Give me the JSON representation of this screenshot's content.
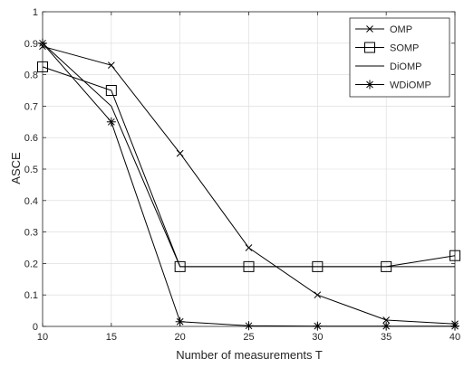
{
  "chart_data": {
    "type": "line",
    "title": "",
    "xlabel": "Number of measurements T",
    "ylabel": "ASCE",
    "x": [
      10,
      15,
      20,
      25,
      30,
      35,
      40
    ],
    "xlim": [
      10,
      40
    ],
    "ylim": [
      0,
      1
    ],
    "xticks": [
      "10",
      "15",
      "20",
      "25",
      "30",
      "35",
      "40"
    ],
    "yticks": [
      "0",
      "0.1",
      "0.2",
      "0.3",
      "0.4",
      "0.5",
      "0.6",
      "0.7",
      "0.8",
      "0.9",
      "1"
    ],
    "grid": true,
    "legend_position": "top-right",
    "series": [
      {
        "name": "OMP",
        "marker": "x",
        "values": [
          0.89,
          0.83,
          0.55,
          0.25,
          0.1,
          0.02,
          0.008
        ]
      },
      {
        "name": "SOMP",
        "marker": "square",
        "values": [
          0.825,
          0.75,
          0.19,
          0.19,
          0.19,
          0.19,
          0.225
        ]
      },
      {
        "name": "DiOMP",
        "marker": "none",
        "values": [
          0.9,
          0.7,
          0.19,
          0.19,
          0.19,
          0.19,
          0.19
        ]
      },
      {
        "name": "WDiOMP",
        "marker": "asterisk",
        "values": [
          0.9,
          0.65,
          0.015,
          0.002,
          0.001,
          0.001,
          0.001
        ]
      }
    ]
  }
}
